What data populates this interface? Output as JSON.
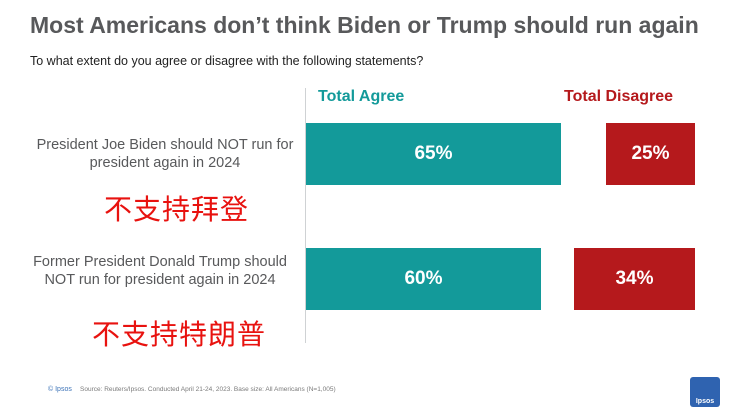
{
  "title": "Most Americans don’t think Biden or Trump should run again",
  "subtitle": "To what extent do you agree or disagree with the following statements?",
  "legend": {
    "agree_label": "Total Agree",
    "disagree_label": "Total Disagree"
  },
  "colors": {
    "agree": "#139a9a",
    "disagree": "#b5191c",
    "annotation": "#e8120f"
  },
  "chart_data": {
    "type": "bar",
    "orientation": "horizontal",
    "title": "Most Americans don’t think Biden or Trump should run again",
    "categories": [
      "President Joe Biden should NOT run for president again in 2024",
      "Former President Donald Trump should NOT run for president again in 2024"
    ],
    "series": [
      {
        "name": "Total Agree",
        "values": [
          65,
          60
        ],
        "labels": [
          "65%",
          "60%"
        ]
      },
      {
        "name": "Total Disagree",
        "values": [
          25,
          34
        ],
        "labels": [
          "25%",
          "34%"
        ]
      }
    ],
    "unit": "%",
    "legend_position": "top"
  },
  "annotations": [
    "不支持拜登",
    "不支持特朗普"
  ],
  "footer": {
    "logo": "© Ipsos",
    "source": "Source: Reuters/Ipsos. Conducted April 21-24, 2023. Base size: All Americans (N=1,005)",
    "brand": "Ipsos"
  }
}
